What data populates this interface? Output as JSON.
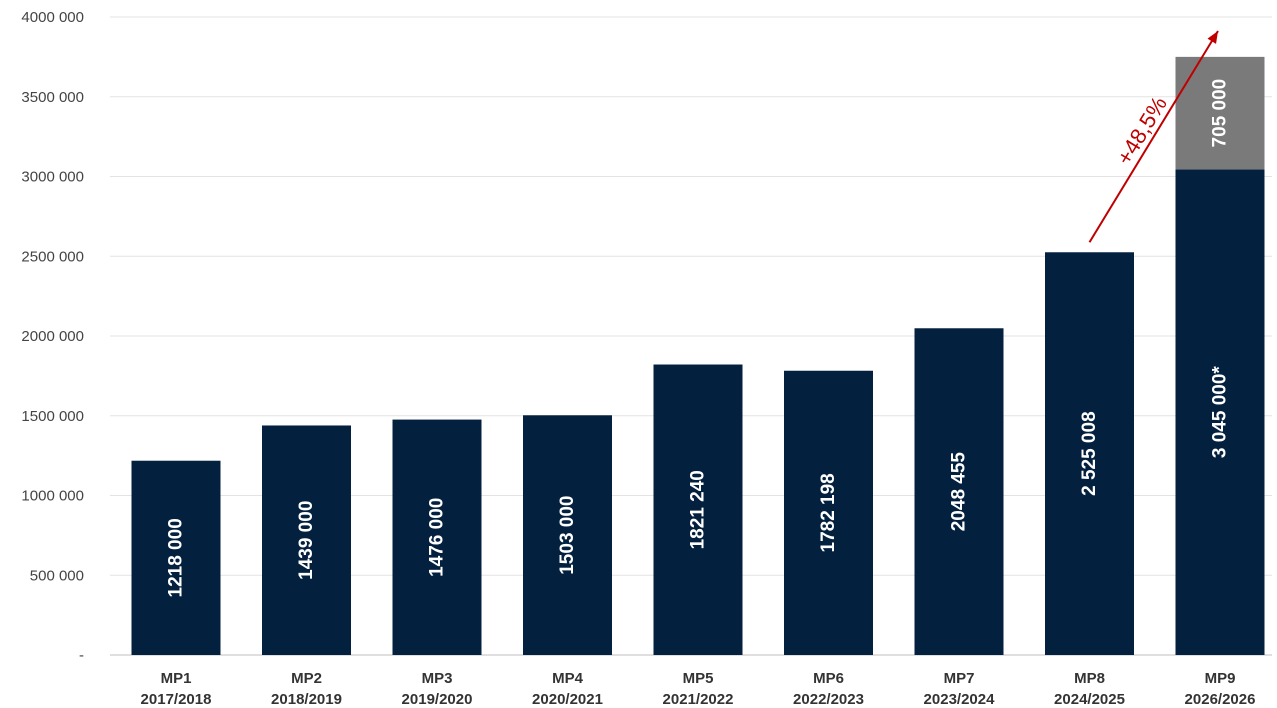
{
  "chart_data": {
    "type": "bar",
    "stacked": true,
    "categories": [
      {
        "code": "MP1",
        "period": "2017/2018"
      },
      {
        "code": "MP2",
        "period": "2018/2019"
      },
      {
        "code": "MP3",
        "period": "2019/2020"
      },
      {
        "code": "MP4",
        "period": "2020/2021"
      },
      {
        "code": "MP5",
        "period": "2021/2022"
      },
      {
        "code": "MP6",
        "period": "2022/2023"
      },
      {
        "code": "MP7",
        "period": "2023/2024"
      },
      {
        "code": "MP8",
        "period": "2024/2025"
      },
      {
        "code": "MP9",
        "period": "2026/2026"
      }
    ],
    "series": [
      {
        "values": [
          1218000,
          1439000,
          1476000,
          1503000,
          1821240,
          1782198,
          2048455,
          2525008,
          3045000
        ],
        "labels": [
          "1218 000",
          "1439 000",
          "1476 000",
          "1503 000",
          "1821 240",
          "1782 198",
          "2048 455",
          "2 525 008",
          "3 045 000*"
        ],
        "color": "#03203f"
      },
      {
        "values": [
          0,
          0,
          0,
          0,
          0,
          0,
          0,
          0,
          705000
        ],
        "labels": [
          "",
          "",
          "",
          "",
          "",
          "",
          "",
          "",
          "705 000"
        ],
        "color": "#7a7a7a"
      }
    ],
    "ylim": [
      0,
      4000000
    ],
    "yticks": [
      0,
      500000,
      1000000,
      1500000,
      2000000,
      2500000,
      3000000,
      3500000,
      4000000
    ],
    "ytick_labels": [
      "-",
      "500 000",
      "1000 000",
      "1500 000",
      "2000 000",
      "2500 000",
      "3000 000",
      "3500 000",
      "4000 000"
    ],
    "grid": true,
    "annotation": {
      "text": "+48,5%",
      "from_category": "MP8",
      "to_category": "MP9",
      "color": "#c00000"
    }
  }
}
